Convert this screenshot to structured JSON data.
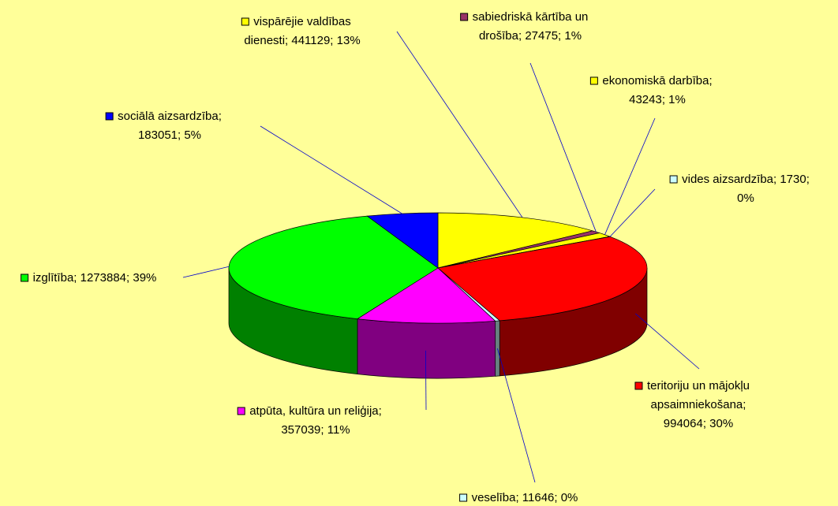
{
  "chart_data": {
    "type": "pie",
    "values": [
      441129,
      27475,
      43243,
      1730,
      994064,
      11646,
      357039,
      1273884,
      183051
    ],
    "value_labels": [
      [
        "vispārējie valdības",
        "dienesti; 441129; 13%"
      ],
      [
        "sabiedriskā kārtība un",
        "drošība; 27475; 1%"
      ],
      [
        "ekonomiskā darbība;",
        "43243; 1%"
      ],
      [
        "vides aizsardzība; 1730;",
        "0%"
      ],
      [
        "teritoriju un mājokļu",
        "apsaimniekošana;",
        "994064; 30%"
      ],
      [
        "veselība; 11646; 0%"
      ],
      [
        "atpūta, kultūra un reliģija;",
        "357039; 11%"
      ],
      [
        "izglītība; 1273884; 39%"
      ],
      [
        "sociālā aizsardzība;",
        "183051; 5%"
      ]
    ],
    "colors": [
      "#ffff00",
      "#993366",
      "#ffff00",
      "#ccffff",
      "#ff0000",
      "#ccffff",
      "#ff00ff",
      "#00ff00",
      "#0000ff"
    ]
  }
}
